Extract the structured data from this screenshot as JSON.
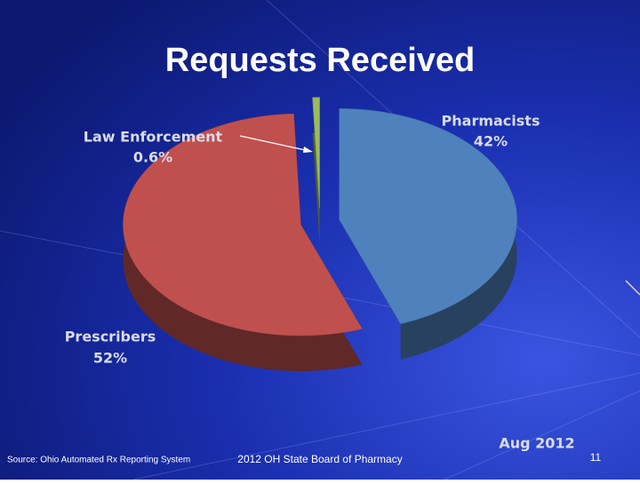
{
  "chart_data": {
    "type": "pie",
    "title": "Requests Received",
    "categories": [
      "Pharmacists",
      "Prescribers",
      "Law Enforcement"
    ],
    "values": [
      42,
      52,
      0.6
    ],
    "value_labels": [
      "42%",
      "52%",
      "0.6%"
    ],
    "colors": [
      "#4f81bd",
      "#c0504d",
      "#9bbb59"
    ],
    "annotation": "Aug 2012"
  },
  "footer": {
    "source": "Source: Ohio Automated Rx Reporting System",
    "center": "2012 OH State Board of Pharmacy",
    "page": "11"
  }
}
